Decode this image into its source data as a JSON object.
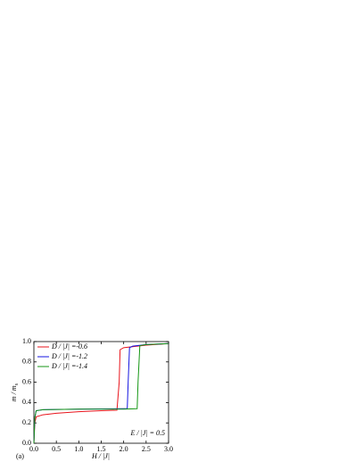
{
  "chart_data": {
    "type": "line",
    "x_label": "H / |J|",
    "y_label": "m / m",
    "y_label_subscript": "s",
    "annotation": "E / |J| = 0.5",
    "panel_label": "(a)",
    "legend": "upper left",
    "xlim": [
      0,
      3
    ],
    "ylim": [
      0,
      1
    ],
    "xticks": [
      {
        "value": 0,
        "label": "0.0"
      },
      {
        "value": 0.5,
        "label": "0.5"
      },
      {
        "value": 1,
        "label": "1.0"
      },
      {
        "value": 1.5,
        "label": "1.5"
      },
      {
        "value": 2,
        "label": "2.0"
      },
      {
        "value": 2.5,
        "label": "2.5"
      },
      {
        "value": 3,
        "label": "3.0"
      }
    ],
    "yticks": [
      {
        "value": 0,
        "label": "0.0"
      },
      {
        "value": 0.2,
        "label": "0.2"
      },
      {
        "value": 0.4,
        "label": "0.4"
      },
      {
        "value": 0.6,
        "label": "0.6"
      },
      {
        "value": 0.8,
        "label": "0.8"
      },
      {
        "value": 1,
        "label": "1.0"
      }
    ],
    "series": [
      {
        "name": "D / |J| =-0.6",
        "color": "#e8141c",
        "x": [
          0,
          0.02,
          0.05,
          0.2,
          0.5,
          1.0,
          1.5,
          1.85,
          1.9,
          1.92,
          2.0,
          2.5,
          3.0
        ],
        "values": [
          0,
          0.2,
          0.26,
          0.28,
          0.295,
          0.31,
          0.32,
          0.325,
          0.6,
          0.92,
          0.94,
          0.965,
          0.98
        ]
      },
      {
        "name": "D / |J| =-1.2",
        "color": "#1414e0",
        "x": [
          0,
          0.02,
          0.05,
          0.2,
          1.0,
          2.0,
          2.08,
          2.1,
          2.13,
          2.2,
          2.5,
          3.0
        ],
        "values": [
          0,
          0.25,
          0.32,
          0.33,
          0.335,
          0.34,
          0.34,
          0.6,
          0.94,
          0.955,
          0.97,
          0.98
        ]
      },
      {
        "name": "D / |J| =-1.4",
        "color": "#149614",
        "x": [
          0,
          0.02,
          0.05,
          0.2,
          1.0,
          2.0,
          2.3,
          2.32,
          2.36,
          2.5,
          3.0
        ],
        "values": [
          0,
          0.25,
          0.32,
          0.33,
          0.335,
          0.335,
          0.34,
          0.6,
          0.96,
          0.97,
          0.98
        ]
      }
    ]
  }
}
